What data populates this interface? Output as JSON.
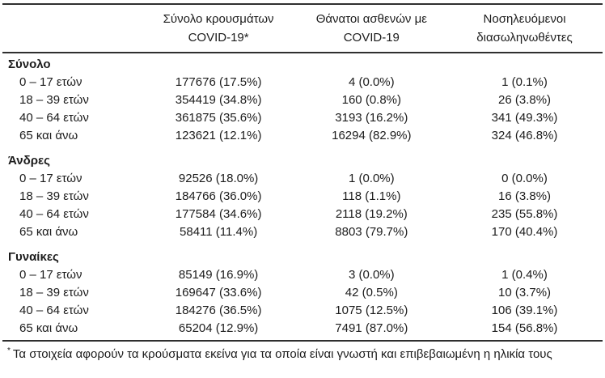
{
  "table": {
    "headers": [
      {
        "line1": "Σύνολο κρουσμάτων",
        "line2": "COVID-19*"
      },
      {
        "line1": "Θάνατοι ασθενών με",
        "line2": "COVID-19"
      },
      {
        "line1": "Νοσηλευόμενοι",
        "line2": "διασωληνωθέντες"
      }
    ],
    "groups": [
      {
        "label": "Σύνολο",
        "rows": [
          {
            "label": "0 – 17 ετών",
            "cases": "177676 (17.5%)",
            "deaths": "4 (0.0%)",
            "intubated": "1 (0.1%)"
          },
          {
            "label": "18 – 39 ετών",
            "cases": "354419 (34.8%)",
            "deaths": "160 (0.8%)",
            "intubated": "26 (3.8%)"
          },
          {
            "label": "40 – 64 ετών",
            "cases": "361875 (35.6%)",
            "deaths": "3193 (16.2%)",
            "intubated": "341 (49.3%)"
          },
          {
            "label": "65 και άνω",
            "cases": "123621 (12.1%)",
            "deaths": "16294 (82.9%)",
            "intubated": "324 (46.8%)"
          }
        ]
      },
      {
        "label": "Άνδρες",
        "rows": [
          {
            "label": "0 – 17 ετών",
            "cases": "92526 (18.0%)",
            "deaths": "1 (0.0%)",
            "intubated": "0 (0.0%)"
          },
          {
            "label": "18 – 39 ετών",
            "cases": "184766 (36.0%)",
            "deaths": "118 (1.1%)",
            "intubated": "16 (3.8%)"
          },
          {
            "label": "40 – 64 ετών",
            "cases": "177584 (34.6%)",
            "deaths": "2118 (19.2%)",
            "intubated": "235 (55.8%)"
          },
          {
            "label": "65 και άνω",
            "cases": "58411 (11.4%)",
            "deaths": "8803 (79.7%)",
            "intubated": "170 (40.4%)"
          }
        ]
      },
      {
        "label": "Γυναίκες",
        "rows": [
          {
            "label": "0 – 17 ετών",
            "cases": "85149 (16.9%)",
            "deaths": "3 (0.0%)",
            "intubated": "1 (0.4%)"
          },
          {
            "label": "18 – 39 ετών",
            "cases": "169647 (33.6%)",
            "deaths": "42 (0.5%)",
            "intubated": "10 (3.7%)"
          },
          {
            "label": "40 – 64 ετών",
            "cases": "184276 (36.5%)",
            "deaths": "1075 (12.5%)",
            "intubated": "106 (39.1%)"
          },
          {
            "label": "65 και άνω",
            "cases": "65204 (12.9%)",
            "deaths": "7491 (87.0%)",
            "intubated": "154 (56.8%)"
          }
        ]
      }
    ]
  },
  "footnote": {
    "marker": "*",
    "text": "Τα στοιχεία αφορούν τα κρούσματα εκείνα για τα οποία είναι γνωστή και επιβεβαιωμένη η ηλικία τους"
  },
  "colors": {
    "text": "#1c1c1c",
    "rule": "#2f2f2f",
    "background": "#ffffff"
  }
}
